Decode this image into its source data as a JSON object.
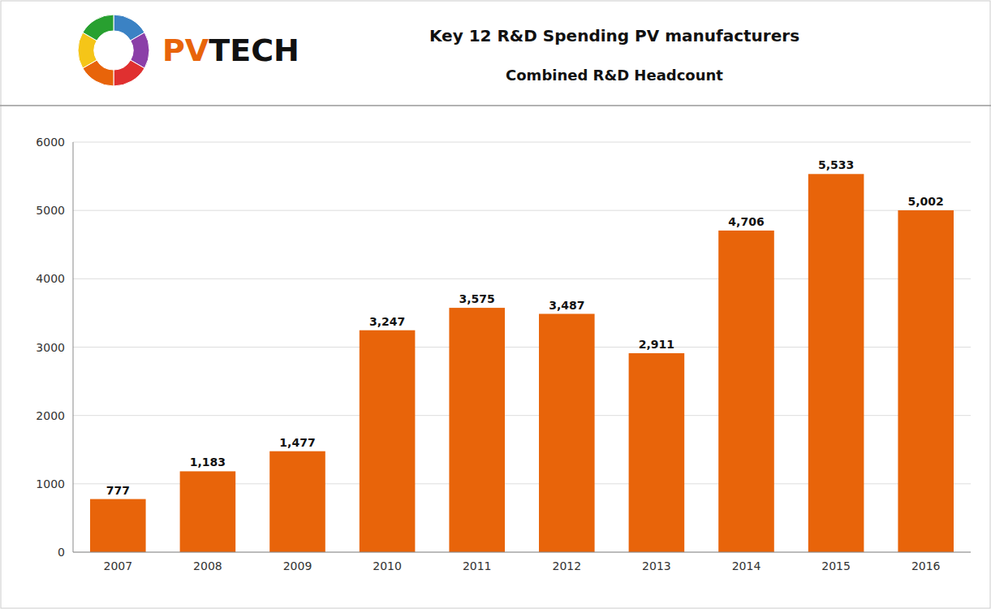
{
  "chart_data": {
    "type": "bar",
    "title": "Key 12 R&D Spending PV manufacturers",
    "subtitle": "Combined R&D Headcount",
    "annotations": [
      "PV",
      "TECH"
    ],
    "categories": [
      "2007",
      "2008",
      "2009",
      "2010",
      "2011",
      "2012",
      "2013",
      "2014",
      "2015",
      "2016"
    ],
    "values": [
      777,
      1183,
      1477,
      3247,
      3575,
      3487,
      2911,
      4706,
      5533,
      5002
    ],
    "value_labels": [
      "777",
      "1,183",
      "1,477",
      "3,247",
      "3,575",
      "3,487",
      "2,911",
      "4,706",
      "5,533",
      "5,002"
    ],
    "data_labels": true,
    "color": "#E8640A",
    "ylim": [
      0,
      6000
    ],
    "yticks": [
      0,
      1000,
      2000,
      3000,
      4000,
      5000,
      6000
    ],
    "grid": true
  }
}
